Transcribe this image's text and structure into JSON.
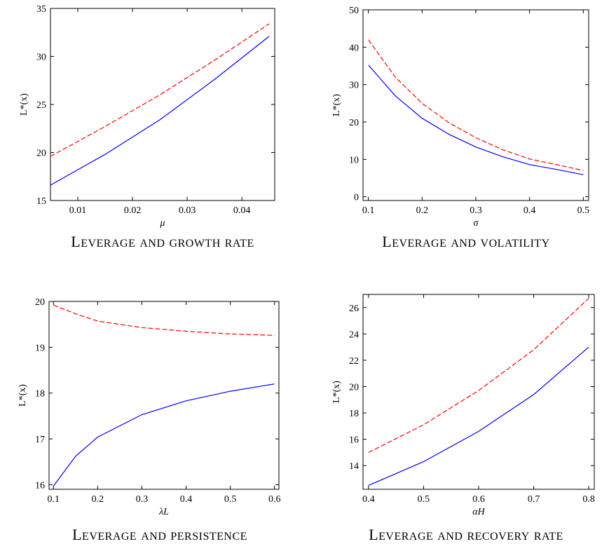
{
  "chart_data": [
    {
      "type": "line",
      "caption": "Leverage and growth rate",
      "xlabel": "μ",
      "ylabel": "L*(x)",
      "xlim": [
        0.005,
        0.046
      ],
      "ylim": [
        15,
        35
      ],
      "xticks": [
        0.01,
        0.02,
        0.03,
        0.04
      ],
      "xtick_labels": [
        "0.01",
        "0.02",
        "0.03",
        "0.04"
      ],
      "yticks": [
        15,
        20,
        25,
        30,
        35
      ],
      "ytick_labels": [
        "15",
        "20",
        "25",
        "30",
        "35"
      ],
      "series": [
        {
          "style": "solid",
          "color": "#0000ff",
          "x": [
            0.005,
            0.015,
            0.025,
            0.035,
            0.045
          ],
          "y": [
            16.6,
            19.8,
            23.4,
            27.6,
            32.1
          ]
        },
        {
          "style": "dashed",
          "color": "#ff0000",
          "x": [
            0.005,
            0.015,
            0.025,
            0.035,
            0.045
          ],
          "y": [
            19.6,
            22.7,
            26.0,
            29.6,
            33.4
          ]
        }
      ]
    },
    {
      "type": "line",
      "caption": "Leverage and volatility",
      "xlabel": "σ",
      "ylabel": "L*(x)",
      "xlim": [
        0.09,
        0.51
      ],
      "ylim": [
        -1,
        50
      ],
      "xticks": [
        0.1,
        0.2,
        0.3,
        0.4,
        0.5
      ],
      "xtick_labels": [
        "0.1",
        "0.2",
        "0.3",
        "0.4",
        "0.5"
      ],
      "yticks": [
        0,
        10,
        20,
        30,
        40,
        50
      ],
      "ytick_labels": [
        "0",
        "10",
        "20",
        "30",
        "40",
        "50"
      ],
      "series": [
        {
          "style": "solid",
          "color": "#0000ff",
          "x": [
            0.1,
            0.15,
            0.2,
            0.25,
            0.3,
            0.35,
            0.4,
            0.45,
            0.5
          ],
          "y": [
            35.2,
            27.0,
            21.0,
            16.7,
            13.3,
            10.7,
            8.6,
            7.3,
            5.9
          ]
        },
        {
          "style": "dashed",
          "color": "#ff0000",
          "x": [
            0.1,
            0.15,
            0.2,
            0.25,
            0.3,
            0.35,
            0.4,
            0.45,
            0.5
          ],
          "y": [
            42.0,
            32.0,
            25.0,
            19.8,
            15.8,
            12.6,
            10.1,
            8.6,
            7.0
          ]
        }
      ]
    },
    {
      "type": "line",
      "caption": "Leverage and persistence",
      "xlabel": "λL",
      "ylabel": "L*(x)",
      "xlim": [
        0.09,
        0.61
      ],
      "ylim": [
        15.9,
        20.0
      ],
      "xticks": [
        0.1,
        0.2,
        0.3,
        0.4,
        0.5,
        0.6
      ],
      "xtick_labels": [
        "0.1",
        "0.2",
        "0.3",
        "0.4",
        "0.5",
        "0.6"
      ],
      "yticks": [
        16,
        17,
        18,
        19,
        20
      ],
      "ytick_labels": [
        "16",
        "17",
        "18",
        "19",
        "20"
      ],
      "series": [
        {
          "style": "solid",
          "color": "#0000ff",
          "x": [
            0.1,
            0.15,
            0.2,
            0.3,
            0.4,
            0.5,
            0.6
          ],
          "y": [
            15.97,
            16.62,
            17.04,
            17.53,
            17.83,
            18.04,
            18.2
          ]
        },
        {
          "style": "dashed",
          "color": "#ff0000",
          "x": [
            0.1,
            0.15,
            0.2,
            0.3,
            0.4,
            0.5,
            0.6
          ],
          "y": [
            19.92,
            19.73,
            19.57,
            19.43,
            19.35,
            19.29,
            19.26
          ]
        }
      ]
    },
    {
      "type": "line",
      "caption": "Leverage and recovery rate",
      "xlabel": "αH",
      "ylabel": "L*(x)",
      "xlim": [
        0.39,
        0.81
      ],
      "ylim": [
        12.2,
        27.0
      ],
      "xticks": [
        0.4,
        0.5,
        0.6,
        0.7,
        0.8
      ],
      "xtick_labels": [
        "0.4",
        "0.5",
        "0.6",
        "0.7",
        "0.8"
      ],
      "yticks": [
        14,
        16,
        18,
        20,
        22,
        24,
        26
      ],
      "ytick_labels": [
        "14",
        "16",
        "18",
        "20",
        "22",
        "24",
        "26"
      ],
      "series": [
        {
          "style": "solid",
          "color": "#0000ff",
          "x": [
            0.4,
            0.5,
            0.6,
            0.7,
            0.8
          ],
          "y": [
            12.5,
            14.3,
            16.6,
            19.4,
            23.0
          ]
        },
        {
          "style": "dashed",
          "color": "#ff0000",
          "x": [
            0.4,
            0.5,
            0.6,
            0.7,
            0.8
          ],
          "y": [
            15.0,
            17.1,
            19.7,
            22.8,
            26.7
          ]
        }
      ]
    }
  ]
}
